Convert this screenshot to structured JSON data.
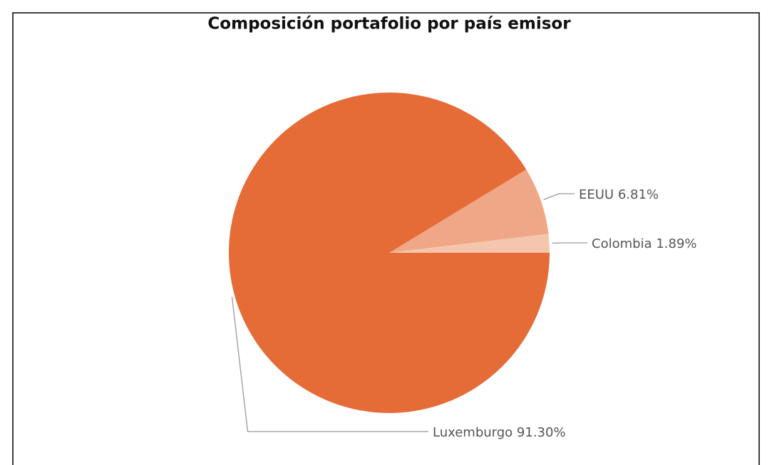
{
  "chart_data": {
    "type": "pie",
    "title": "Composición portafolio por país emisor",
    "categories": [
      "Colombia",
      "EEUU",
      "Luxemburgo"
    ],
    "values": [
      1.89,
      6.81,
      91.3
    ],
    "value_labels": [
      "1.89%",
      "6.81%",
      "91.30%"
    ],
    "colors": [
      "#F5C6AE",
      "#F0A787",
      "#E56B37"
    ]
  }
}
